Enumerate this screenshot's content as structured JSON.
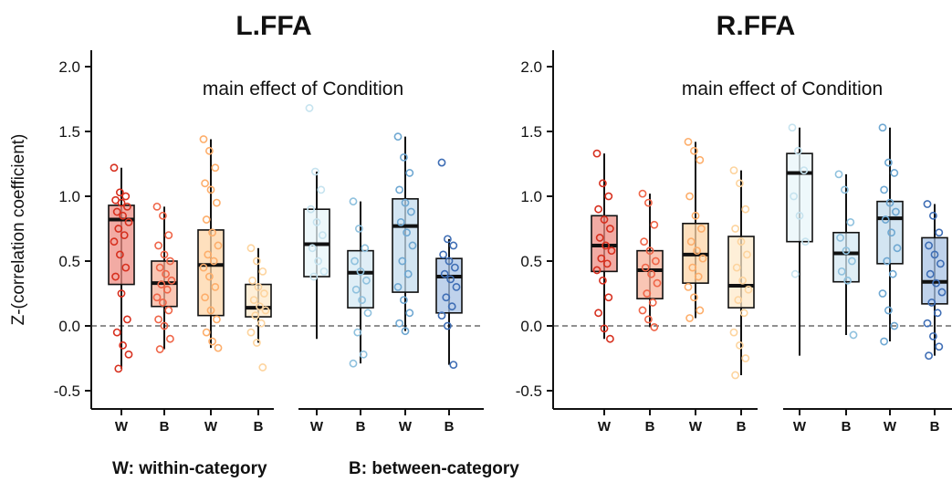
{
  "chart_data": [
    {
      "type": "box",
      "title": "L.FFA",
      "annotation": "main effect of Condition",
      "ylabel": "Z-(correlation coefficient)",
      "ylim": [
        -0.6,
        2.1
      ],
      "yticks": [
        -0.5,
        0.0,
        0.5,
        1.0,
        1.5,
        2.0
      ],
      "reference_line": 0.0,
      "groups": [
        {
          "boxes": [
            {
              "label": "W",
              "color": "#d7301f",
              "fill": "#ee8f86",
              "q1": 0.32,
              "median": 0.82,
              "q3": 0.93,
              "min": -0.33,
              "max": 1.22,
              "points": [
                1.22,
                1.03,
                1.0,
                0.97,
                0.95,
                0.92,
                0.88,
                0.85,
                0.8,
                0.75,
                0.7,
                0.65,
                0.55,
                0.45,
                0.38,
                0.25,
                0.05,
                -0.05,
                -0.15,
                -0.22,
                -0.33
              ]
            },
            {
              "label": "B",
              "color": "#ef6548",
              "fill": "#f7b39b",
              "q1": 0.15,
              "median": 0.33,
              "q3": 0.5,
              "min": -0.18,
              "max": 0.92,
              "points": [
                0.92,
                0.85,
                0.7,
                0.62,
                0.55,
                0.5,
                0.45,
                0.4,
                0.35,
                0.32,
                0.28,
                0.22,
                0.18,
                0.12,
                0.05,
                0.0,
                -0.1,
                -0.18
              ]
            },
            {
              "label": "W",
              "color": "#fdae6b",
              "fill": "#fdd5a8",
              "q1": 0.08,
              "median": 0.47,
              "q3": 0.74,
              "min": -0.17,
              "max": 1.44,
              "points": [
                1.44,
                1.35,
                1.22,
                1.1,
                1.05,
                0.95,
                0.82,
                0.72,
                0.62,
                0.55,
                0.5,
                0.45,
                0.38,
                0.3,
                0.22,
                0.12,
                0.05,
                -0.05,
                -0.12,
                -0.17
              ]
            },
            {
              "label": "B",
              "color": "#fdd49e",
              "fill": "#feeacb",
              "q1": 0.07,
              "median": 0.14,
              "q3": 0.32,
              "min": -0.13,
              "max": 0.6,
              "points": [
                0.6,
                0.5,
                0.42,
                0.35,
                0.3,
                0.25,
                0.2,
                0.15,
                0.12,
                0.08,
                0.02,
                -0.05,
                -0.13,
                -0.32
              ]
            }
          ]
        },
        {
          "boxes": [
            {
              "label": "W",
              "color": "#c6e3ef",
              "fill": "#e8f5fa",
              "q1": 0.38,
              "median": 0.63,
              "q3": 0.9,
              "min": -0.1,
              "max": 1.19,
              "points": [
                1.68,
                1.19,
                1.05,
                0.9,
                0.8,
                0.7,
                0.6,
                0.5,
                0.42,
                0.38
              ]
            },
            {
              "label": "B",
              "color": "#8fc1de",
              "fill": "#d4e8f3",
              "q1": 0.14,
              "median": 0.41,
              "q3": 0.58,
              "min": -0.29,
              "max": 0.96,
              "points": [
                0.96,
                0.75,
                0.6,
                0.5,
                0.42,
                0.35,
                0.28,
                0.2,
                0.1,
                -0.05,
                -0.22,
                -0.29
              ]
            },
            {
              "label": "W",
              "color": "#6fa8d2",
              "fill": "#c4dcee",
              "q1": 0.26,
              "median": 0.77,
              "q3": 0.98,
              "min": -0.04,
              "max": 1.46,
              "points": [
                1.46,
                1.3,
                1.18,
                1.05,
                0.95,
                0.88,
                0.8,
                0.72,
                0.62,
                0.5,
                0.4,
                0.3,
                0.2,
                0.1,
                0.02,
                -0.04
              ]
            },
            {
              "label": "B",
              "color": "#3f6eb5",
              "fill": "#a9c3e4",
              "q1": 0.1,
              "median": 0.38,
              "q3": 0.52,
              "min": -0.3,
              "max": 0.67,
              "points": [
                1.26,
                0.67,
                0.62,
                0.55,
                0.5,
                0.45,
                0.4,
                0.36,
                0.3,
                0.22,
                0.15,
                0.08,
                0.0,
                -0.3
              ]
            }
          ]
        }
      ]
    },
    {
      "type": "box",
      "title": "R.FFA",
      "annotation": "main effect of Condition",
      "ylim": [
        -0.6,
        2.1
      ],
      "yticks": [
        -0.5,
        0.0,
        0.5,
        1.0,
        1.5,
        2.0
      ],
      "reference_line": 0.0,
      "groups": [
        {
          "boxes": [
            {
              "label": "W",
              "color": "#d7301f",
              "fill": "#ee8f86",
              "q1": 0.42,
              "median": 0.62,
              "q3": 0.85,
              "min": -0.1,
              "max": 1.33,
              "points": [
                1.33,
                1.1,
                1.0,
                0.9,
                0.82,
                0.75,
                0.68,
                0.62,
                0.58,
                0.52,
                0.48,
                0.43,
                0.35,
                0.22,
                0.1,
                -0.02,
                -0.1
              ]
            },
            {
              "label": "B",
              "color": "#ef6548",
              "fill": "#f7b39b",
              "q1": 0.21,
              "median": 0.43,
              "q3": 0.58,
              "min": -0.01,
              "max": 1.02,
              "points": [
                1.02,
                0.95,
                0.78,
                0.65,
                0.58,
                0.5,
                0.45,
                0.4,
                0.33,
                0.25,
                0.18,
                0.12,
                0.05,
                -0.01
              ]
            },
            {
              "label": "W",
              "color": "#fdae6b",
              "fill": "#fdd5a8",
              "q1": 0.33,
              "median": 0.55,
              "q3": 0.79,
              "min": 0.06,
              "max": 1.42,
              "points": [
                1.42,
                1.35,
                1.28,
                1.0,
                0.85,
                0.75,
                0.65,
                0.58,
                0.52,
                0.45,
                0.38,
                0.3,
                0.22,
                0.12,
                0.06
              ]
            },
            {
              "label": "B",
              "color": "#fdd49e",
              "fill": "#feeacb",
              "q1": 0.14,
              "median": 0.31,
              "q3": 0.69,
              "min": -0.38,
              "max": 1.2,
              "points": [
                1.2,
                1.1,
                0.9,
                0.75,
                0.65,
                0.55,
                0.45,
                0.35,
                0.28,
                0.2,
                0.1,
                -0.05,
                -0.15,
                -0.25,
                -0.38
              ]
            }
          ]
        },
        {
          "boxes": [
            {
              "label": "W",
              "color": "#c6e3ef",
              "fill": "#e8f5fa",
              "q1": 0.65,
              "median": 1.18,
              "q3": 1.33,
              "min": -0.23,
              "max": 1.53,
              "points": [
                1.53,
                1.35,
                1.2,
                1.0,
                0.85,
                0.65,
                0.4
              ]
            },
            {
              "label": "B",
              "color": "#8fc1de",
              "fill": "#d4e8f3",
              "q1": 0.34,
              "median": 0.56,
              "q3": 0.72,
              "min": -0.07,
              "max": 1.17,
              "points": [
                1.17,
                1.05,
                0.8,
                0.68,
                0.58,
                0.5,
                0.42,
                0.35,
                -0.07
              ]
            },
            {
              "label": "W",
              "color": "#6fa8d2",
              "fill": "#c4dcee",
              "q1": 0.48,
              "median": 0.83,
              "q3": 0.96,
              "min": -0.12,
              "max": 1.53,
              "points": [
                1.53,
                1.26,
                1.18,
                1.05,
                0.95,
                0.88,
                0.82,
                0.72,
                0.6,
                0.5,
                0.4,
                0.25,
                0.12,
                0.0,
                -0.12
              ]
            },
            {
              "label": "B",
              "color": "#3f6eb5",
              "fill": "#a9c3e4",
              "q1": 0.17,
              "median": 0.34,
              "q3": 0.68,
              "min": -0.23,
              "max": 0.94,
              "points": [
                0.94,
                0.85,
                0.72,
                0.62,
                0.55,
                0.48,
                0.4,
                0.33,
                0.26,
                0.18,
                0.1,
                0.02,
                -0.08,
                -0.16,
                -0.23
              ]
            }
          ]
        }
      ]
    }
  ],
  "legend": {
    "within": "W: within-category",
    "between": "B: between-category"
  }
}
